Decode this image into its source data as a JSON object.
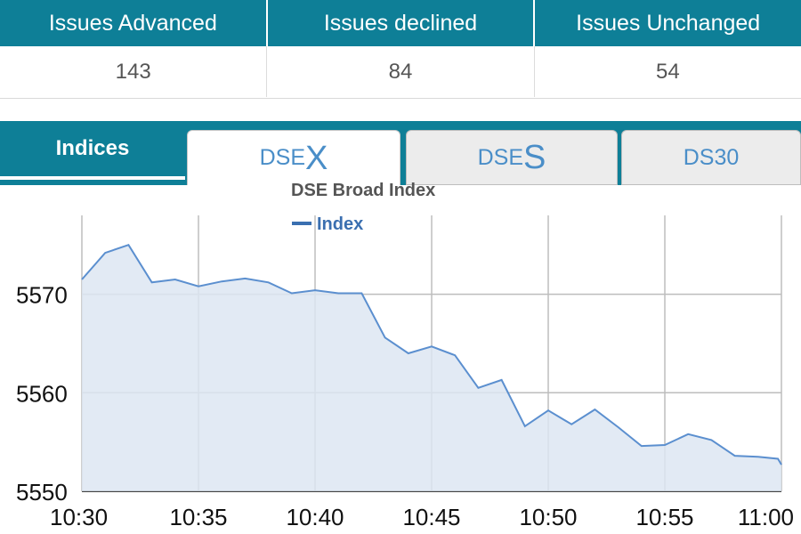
{
  "issues": {
    "headers": [
      "Issues Advanced",
      "Issues declined",
      "Issues Unchanged"
    ],
    "values": [
      "143",
      "84",
      "54"
    ]
  },
  "tabs": {
    "indices_label": "Indices",
    "items": [
      {
        "prefix": "DSE",
        "suffix": "X",
        "state": "active"
      },
      {
        "prefix": "DSE",
        "suffix": "S",
        "state": "inactive"
      },
      {
        "prefix": "DS30",
        "suffix": "",
        "state": "inactive"
      }
    ]
  },
  "colors": {
    "header_bg": "#0e7f97",
    "line": "#5b8fcf",
    "fill": "#dde6f2",
    "grid": "#bdbdbd"
  },
  "chart_data": {
    "type": "area",
    "title": "DSE Broad Index",
    "legend": {
      "entries": [
        "Index"
      ],
      "placement": "top-left"
    },
    "x_ticks": [
      "10:30",
      "10:35",
      "10:40",
      "10:45",
      "10:50",
      "10:55",
      "11:00"
    ],
    "xlim": [
      "10:30",
      "11:00"
    ],
    "y_ticks": [
      5550,
      5560,
      5570
    ],
    "ylim": [
      5550,
      5578
    ],
    "grid": true,
    "series": [
      {
        "name": "Index",
        "points": [
          [
            "10:30",
            5571.5
          ],
          [
            "10:31",
            5574.2
          ],
          [
            "10:32",
            5575.0
          ],
          [
            "10:33",
            5571.2
          ],
          [
            "10:34",
            5571.5
          ],
          [
            "10:35",
            5570.8
          ],
          [
            "10:36",
            5571.3
          ],
          [
            "10:37",
            5571.6
          ],
          [
            "10:38",
            5571.2
          ],
          [
            "10:39",
            5570.1
          ],
          [
            "10:40",
            5570.4
          ],
          [
            "10:41",
            5570.1
          ],
          [
            "10:42",
            5570.1
          ],
          [
            "10:43",
            5565.6
          ],
          [
            "10:44",
            5564.0
          ],
          [
            "10:45",
            5564.7
          ],
          [
            "10:46",
            5563.8
          ],
          [
            "10:47",
            5560.5
          ],
          [
            "10:48",
            5561.3
          ],
          [
            "10:49",
            5556.6
          ],
          [
            "10:50",
            5558.2
          ],
          [
            "10:51",
            5556.8
          ],
          [
            "10:52",
            5558.3
          ],
          [
            "10:53",
            5556.5
          ],
          [
            "10:54",
            5554.6
          ],
          [
            "10:55",
            5554.7
          ],
          [
            "10:56",
            5555.8
          ],
          [
            "10:57",
            5555.2
          ],
          [
            "10:58",
            5553.6
          ],
          [
            "10:59",
            5553.5
          ],
          [
            "11:00",
            5553.3
          ],
          [
            "11:00",
            5552.7
          ]
        ]
      }
    ]
  }
}
